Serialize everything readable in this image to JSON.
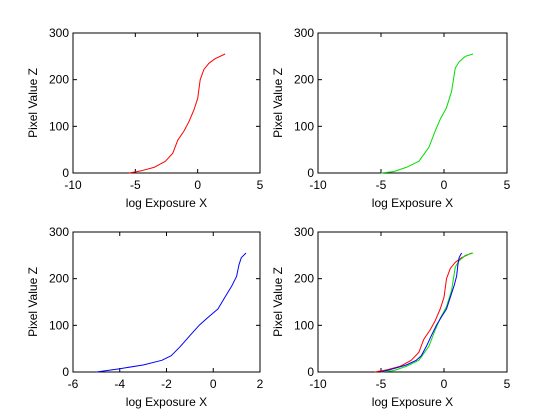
{
  "chart_data": [
    {
      "type": "line",
      "title": "",
      "xlabel": "log Exposure X",
      "ylabel": "Pixel Value Z",
      "xlim": [
        -10,
        5
      ],
      "ylim": [
        0,
        300
      ],
      "xticks": [
        "-10",
        "-5",
        "0",
        "5"
      ],
      "yticks": [
        "0",
        "100",
        "200",
        "300"
      ],
      "grid": false,
      "series": [
        {
          "color": "#ff0000",
          "x": [
            -5.5,
            -4.5,
            -3.5,
            -2.6,
            -2.0,
            -1.6,
            -1.1,
            -0.7,
            -0.3,
            0.0,
            0.2,
            0.5,
            0.9,
            1.4,
            2.2
          ],
          "y": [
            0,
            5,
            12,
            25,
            42,
            70,
            90,
            110,
            135,
            160,
            200,
            222,
            235,
            245,
            255
          ]
        }
      ]
    },
    {
      "type": "line",
      "title": "",
      "xlabel": "log Exposure X",
      "ylabel": "Pixel Value Z",
      "xlim": [
        -10,
        5
      ],
      "ylim": [
        0,
        300
      ],
      "xticks": [
        "-10",
        "-5",
        "0",
        "5"
      ],
      "yticks": [
        "0",
        "100",
        "200",
        "300"
      ],
      "grid": false,
      "series": [
        {
          "color": "#00dd00",
          "x": [
            -5.0,
            -4.0,
            -3.0,
            -2.0,
            -1.2,
            -0.7,
            -0.3,
            0.2,
            0.6,
            0.9,
            1.2,
            1.7,
            2.3
          ],
          "y": [
            0,
            3,
            12,
            25,
            55,
            90,
            115,
            140,
            175,
            225,
            238,
            250,
            255
          ]
        }
      ]
    },
    {
      "type": "line",
      "title": "",
      "xlabel": "log Exposure X",
      "ylabel": "Pixel Value Z",
      "xlim": [
        -6,
        2
      ],
      "ylim": [
        0,
        300
      ],
      "xticks": [
        "-6",
        "-4",
        "-2",
        "0",
        "2"
      ],
      "yticks": [
        "0",
        "100",
        "200",
        "300"
      ],
      "grid": false,
      "series": [
        {
          "color": "#0000ff",
          "x": [
            -5.0,
            -4.0,
            -3.0,
            -2.2,
            -1.8,
            -1.4,
            -1.0,
            -0.6,
            -0.2,
            0.2,
            0.5,
            0.8,
            1.0,
            1.1,
            1.2,
            1.4
          ],
          "y": [
            0,
            7,
            15,
            25,
            35,
            55,
            78,
            100,
            118,
            135,
            160,
            185,
            205,
            230,
            245,
            255
          ]
        }
      ]
    },
    {
      "type": "line",
      "title": "",
      "xlabel": "log Exposure X",
      "ylabel": "Pixel Value Z",
      "xlim": [
        -10,
        5
      ],
      "ylim": [
        0,
        300
      ],
      "xticks": [
        "-10",
        "-5",
        "0",
        "5"
      ],
      "yticks": [
        "0",
        "100",
        "200",
        "300"
      ],
      "grid": false,
      "series": [
        {
          "color": "#ff0000",
          "x": [
            -5.5,
            -4.5,
            -3.5,
            -2.6,
            -2.0,
            -1.6,
            -1.1,
            -0.7,
            -0.3,
            0.0,
            0.2,
            0.5,
            0.9,
            1.4,
            2.2
          ],
          "y": [
            0,
            5,
            12,
            25,
            42,
            70,
            90,
            110,
            135,
            160,
            200,
            222,
            235,
            245,
            255
          ]
        },
        {
          "color": "#00dd00",
          "x": [
            -5.0,
            -4.0,
            -3.0,
            -2.0,
            -1.2,
            -0.7,
            -0.3,
            0.2,
            0.6,
            0.9,
            1.2,
            1.7,
            2.3
          ],
          "y": [
            0,
            3,
            12,
            25,
            55,
            90,
            115,
            140,
            175,
            225,
            238,
            250,
            255
          ]
        },
        {
          "color": "#0000ff",
          "x": [
            -5.0,
            -4.0,
            -3.0,
            -2.2,
            -1.8,
            -1.4,
            -1.0,
            -0.6,
            -0.2,
            0.2,
            0.5,
            0.8,
            1.0,
            1.1,
            1.2,
            1.4
          ],
          "y": [
            0,
            7,
            15,
            25,
            35,
            55,
            78,
            100,
            118,
            135,
            160,
            185,
            205,
            230,
            245,
            255
          ]
        }
      ]
    }
  ]
}
